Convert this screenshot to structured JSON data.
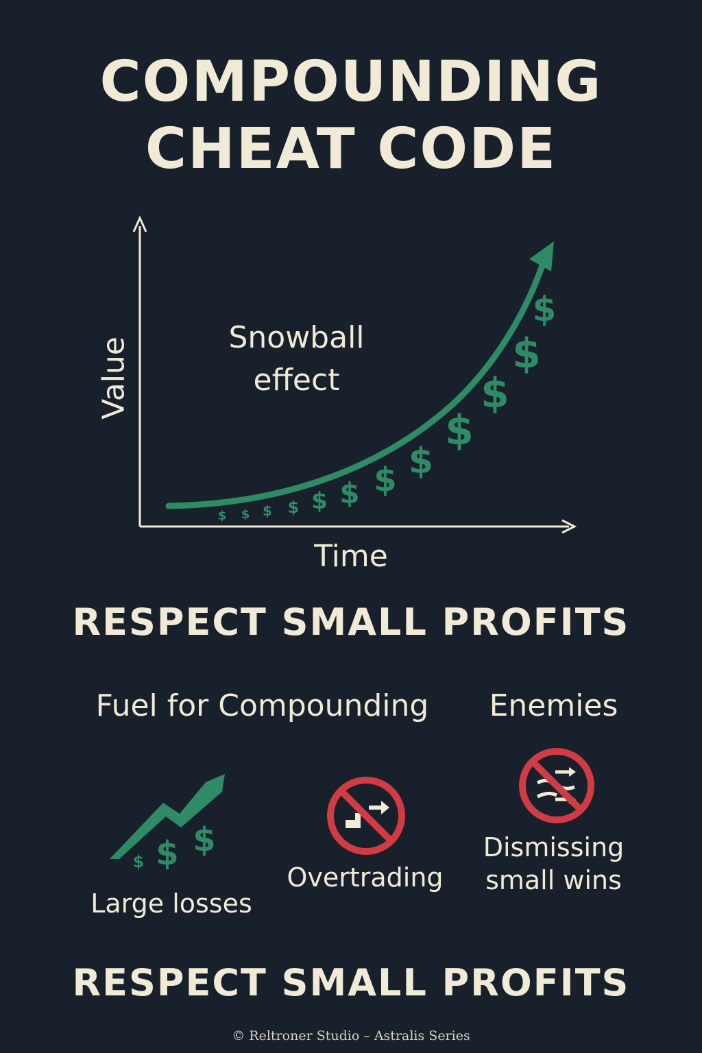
{
  "title": {
    "line1": "COMPOUNDING",
    "line2": "CHEAT CODE"
  },
  "chart": {
    "annotation": {
      "line1": "Snowball",
      "line2": "effect"
    },
    "ylabel": "Value",
    "xlabel": "Time",
    "dollar_symbol": "$"
  },
  "heading_1": "RESPECT SMALL PROFITS",
  "columns": {
    "fuel": "Fuel for Compounding",
    "enemies": "Enemies"
  },
  "items": [
    {
      "label": "Large losses",
      "icon": "rising-dollars-icon"
    },
    {
      "label": "Overtrading",
      "icon": "no-overtrading-icon"
    },
    {
      "label_line1": "Dismissing",
      "label_line2": "small wins",
      "icon": "no-dismissing-icon"
    }
  ],
  "heading_2": "RESPECT SMALL PROFITS",
  "footer": "© Reltroner Studio – Astralis Series",
  "colors": {
    "background": "#18202b",
    "text": "#f1ead7",
    "accent_green": "#2f8a66",
    "prohibit_red": "#d13b43"
  }
}
